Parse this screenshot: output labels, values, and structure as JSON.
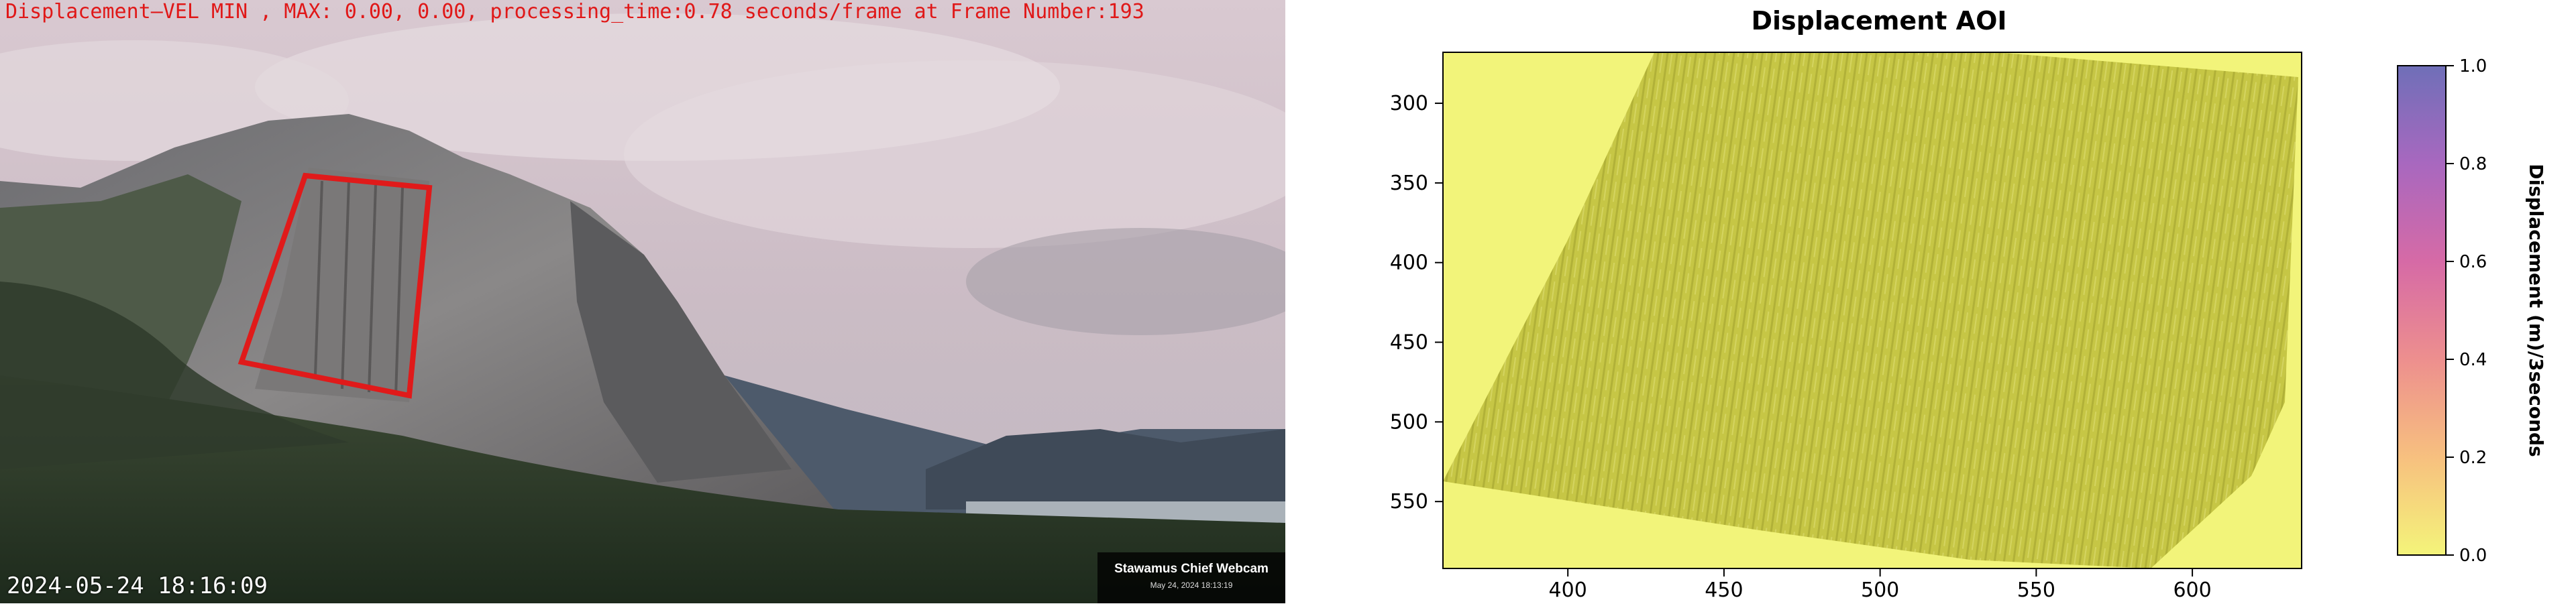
{
  "webcam": {
    "header_text": "Displacement—VEL MIN , MAX: 0.00, 0.00, processing_time:0.78 seconds/frame at Frame Number:193",
    "timestamp": "2024-05-24 18:16:09",
    "badge_title": "Stawamus Chief Webcam",
    "badge_date": "May 24, 2024 18:13:19",
    "roi_color": "#e01a1a"
  },
  "chart_data": {
    "type": "heatmap",
    "title": "Displacement AOI",
    "xlabel": "",
    "ylabel": "",
    "xlim": [
      360,
      635
    ],
    "ylim": [
      592,
      268
    ],
    "x_ticks": [
      "400",
      "450",
      "500",
      "550",
      "600"
    ],
    "y_ticks": [
      "300",
      "350",
      "400",
      "450",
      "500",
      "550"
    ],
    "colorbar": {
      "label": "Displacement (m)/3seconds",
      "min": 0.0,
      "max": 1.0,
      "ticks": [
        "0.0",
        "0.2",
        "0.4",
        "0.6",
        "0.8",
        "1.0"
      ],
      "colors": [
        "#f4f47a",
        "#f7c07f",
        "#ed8f8e",
        "#d66aa6",
        "#a868bf",
        "#6f6fb8"
      ]
    },
    "field_value_min": 0.0,
    "field_value_max": 0.0,
    "background_color": "#f2f47a",
    "texture_color": "#c2c241"
  }
}
